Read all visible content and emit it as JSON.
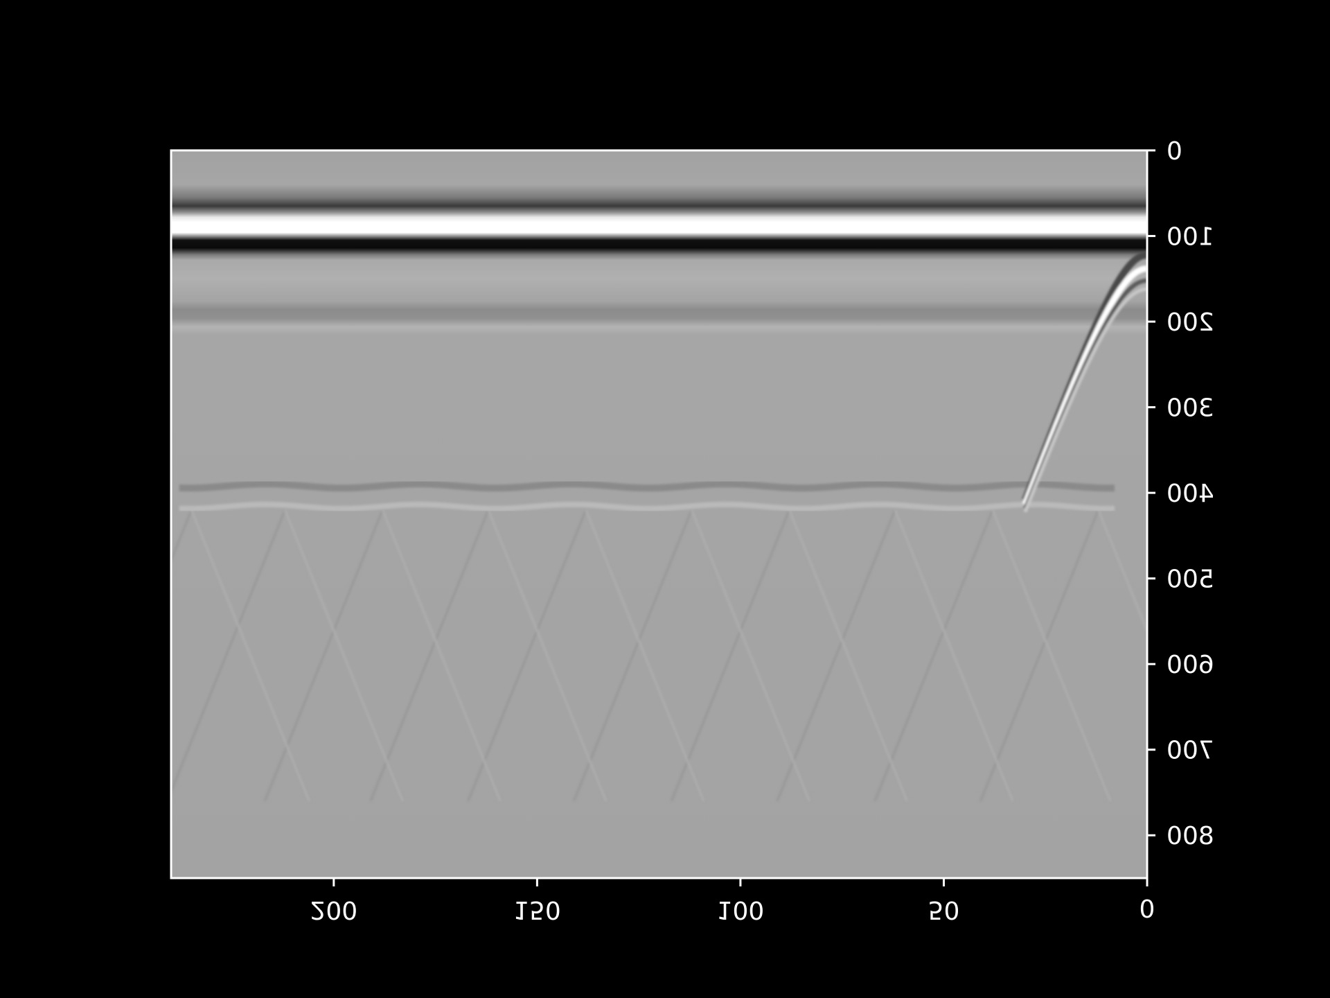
{
  "chart_data": {
    "type": "heatmap",
    "title": "",
    "xlabel": "",
    "ylabel": "",
    "colormap": "gray",
    "x_axis": {
      "position": "bottom",
      "orientation": "reversed",
      "lim": [
        240,
        0
      ],
      "ticks": [
        0,
        50,
        100,
        150,
        200
      ],
      "tick_labels": [
        "0",
        "50",
        "100",
        "150",
        "200"
      ]
    },
    "y_axis": {
      "position": "right",
      "orientation": "downward",
      "lim": [
        0,
        850
      ],
      "ticks": [
        0,
        100,
        200,
        300,
        400,
        500,
        600,
        700,
        800
      ],
      "tick_labels": [
        "0",
        "100",
        "200",
        "300",
        "400",
        "500",
        "600",
        "700",
        "800"
      ]
    },
    "features": [
      {
        "kind": "horizontal-band",
        "depth_range": [
          60,
          70
        ],
        "tone": "dark"
      },
      {
        "kind": "horizontal-band",
        "depth_range": [
          78,
          100
        ],
        "tone": "white"
      },
      {
        "kind": "horizontal-band",
        "depth_range": [
          104,
          118
        ],
        "tone": "black"
      },
      {
        "kind": "horizontal-band",
        "depth_range": [
          190,
          200
        ],
        "tone": "slightly-dark"
      },
      {
        "kind": "hyperbola",
        "apex": [
          0,
          140
        ],
        "tone": "light"
      },
      {
        "kind": "reflector",
        "depth": 400,
        "x_range": [
          8,
          240
        ],
        "tone": "faint"
      },
      {
        "kind": "crossing-diagonals",
        "depth_range": [
          410,
          850
        ],
        "tone": "faint"
      }
    ]
  },
  "colors": {
    "background": "#000000",
    "frame": "#ffffff",
    "field": "#a3a3a3"
  }
}
